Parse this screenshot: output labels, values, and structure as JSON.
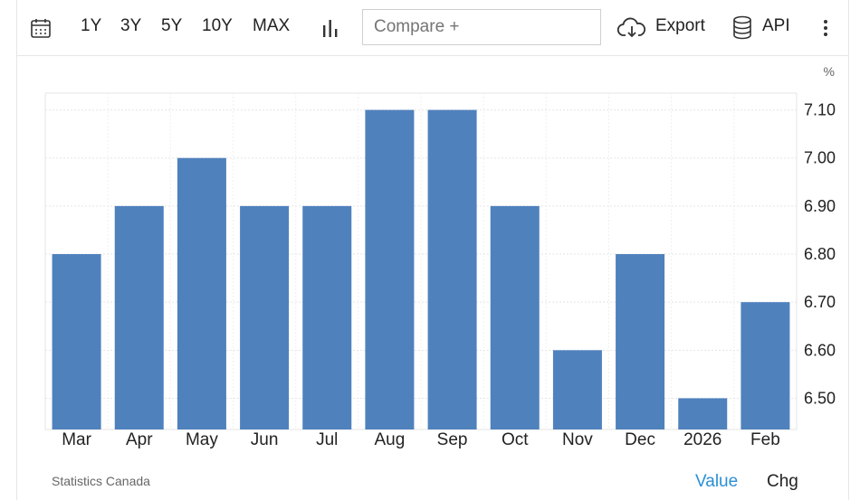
{
  "toolbar": {
    "ranges": [
      "1Y",
      "3Y",
      "5Y",
      "10Y",
      "MAX"
    ],
    "compare_placeholder": "Compare +",
    "export_label": "Export",
    "api_label": "API"
  },
  "footer": {
    "source": "Statistics Canada",
    "tab_value": "Value",
    "tab_chg": "Chg"
  },
  "colors": {
    "bar": "#4f81bd",
    "grid": "#e5e5e5",
    "accent": "#2a8fd6"
  },
  "chart_data": {
    "type": "bar",
    "unit": "%",
    "categories": [
      "Mar",
      "Apr",
      "May",
      "Jun",
      "Jul",
      "Aug",
      "Sep",
      "Oct",
      "Nov",
      "Dec",
      "2026",
      "Feb"
    ],
    "values": [
      6.8,
      6.9,
      7.0,
      6.9,
      6.9,
      7.1,
      7.1,
      6.9,
      6.6,
      6.8,
      6.5,
      6.7
    ],
    "y_ticks": [
      "7.10",
      "7.00",
      "6.90",
      "6.80",
      "6.70",
      "6.60",
      "6.50"
    ],
    "ylim": [
      6.435,
      7.135
    ],
    "y_axis_position": "right",
    "grid": true,
    "legend": false
  }
}
